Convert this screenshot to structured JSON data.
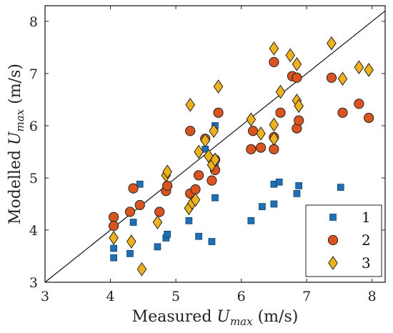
{
  "chart_data": {
    "type": "scatter",
    "xlabel": "Measured U_max (m/s)",
    "ylabel": "Modelled U_max (m/s)",
    "xlabel_parts": {
      "pre": "Measured ",
      "sym": "U",
      "sub": "max",
      "post": " (m/s)"
    },
    "ylabel_parts": {
      "pre": "Modelled ",
      "sym": "U",
      "sub": "max",
      "post": " (m/s)"
    },
    "xlim": [
      3,
      8.2
    ],
    "ylim": [
      3,
      8.3
    ],
    "xticks": [
      3,
      4,
      5,
      6,
      7,
      8
    ],
    "yticks": [
      3,
      4,
      5,
      6,
      7,
      8
    ],
    "reference_line": "y = x",
    "grid": false,
    "legend_position": "bottom-right",
    "series": [
      {
        "name": "1",
        "marker": "square",
        "color": "#1f6fb4",
        "points": [
          [
            4.05,
            3.65
          ],
          [
            4.05,
            3.47
          ],
          [
            4.3,
            3.55
          ],
          [
            4.35,
            4.15
          ],
          [
            4.45,
            4.88
          ],
          [
            4.72,
            3.68
          ],
          [
            4.85,
            3.85
          ],
          [
            4.87,
            3.92
          ],
          [
            5.2,
            4.18
          ],
          [
            5.35,
            3.88
          ],
          [
            5.45,
            5.55
          ],
          [
            5.55,
            3.78
          ],
          [
            5.6,
            4.62
          ],
          [
            5.6,
            6.0
          ],
          [
            5.6,
            5.25
          ],
          [
            6.15,
            4.18
          ],
          [
            6.32,
            4.45
          ],
          [
            6.5,
            4.5
          ],
          [
            6.5,
            4.88
          ],
          [
            6.58,
            4.92
          ],
          [
            6.85,
            4.7
          ],
          [
            6.88,
            4.85
          ],
          [
            7.52,
            4.82
          ]
        ]
      },
      {
        "name": "2",
        "marker": "circle",
        "color": "#d9541e",
        "points": [
          [
            4.05,
            4.25
          ],
          [
            4.05,
            4.08
          ],
          [
            4.35,
            4.8
          ],
          [
            4.3,
            4.35
          ],
          [
            4.45,
            4.48
          ],
          [
            4.75,
            4.35
          ],
          [
            4.85,
            4.75
          ],
          [
            4.87,
            4.85
          ],
          [
            5.22,
            4.7
          ],
          [
            5.22,
            5.9
          ],
          [
            5.3,
            4.78
          ],
          [
            5.35,
            5.05
          ],
          [
            5.45,
            5.75
          ],
          [
            5.55,
            4.95
          ],
          [
            5.6,
            5.15
          ],
          [
            5.6,
            5.35
          ],
          [
            5.65,
            6.25
          ],
          [
            6.15,
            5.55
          ],
          [
            6.18,
            5.9
          ],
          [
            6.3,
            5.58
          ],
          [
            6.5,
            5.55
          ],
          [
            6.5,
            5.78
          ],
          [
            6.5,
            7.22
          ],
          [
            6.6,
            6.25
          ],
          [
            6.78,
            6.95
          ],
          [
            6.85,
            5.95
          ],
          [
            6.85,
            6.92
          ],
          [
            6.88,
            6.1
          ],
          [
            7.38,
            6.92
          ],
          [
            7.55,
            6.25
          ],
          [
            7.8,
            6.42
          ],
          [
            7.95,
            6.15
          ]
        ]
      },
      {
        "name": "3",
        "marker": "diamond",
        "color": "#efb21f",
        "points": [
          [
            4.05,
            3.85
          ],
          [
            4.32,
            3.78
          ],
          [
            4.48,
            3.25
          ],
          [
            4.72,
            4.15
          ],
          [
            4.85,
            5.05
          ],
          [
            4.87,
            5.12
          ],
          [
            5.2,
            4.42
          ],
          [
            5.22,
            6.4
          ],
          [
            5.25,
            4.52
          ],
          [
            5.3,
            4.58
          ],
          [
            5.35,
            5.5
          ],
          [
            5.45,
            5.72
          ],
          [
            5.5,
            5.42
          ],
          [
            5.55,
            5.25
          ],
          [
            5.58,
            5.9
          ],
          [
            5.6,
            5.35
          ],
          [
            5.65,
            6.75
          ],
          [
            6.15,
            6.12
          ],
          [
            6.3,
            5.85
          ],
          [
            6.5,
            7.48
          ],
          [
            6.5,
            5.75
          ],
          [
            6.5,
            6.02
          ],
          [
            6.6,
            6.65
          ],
          [
            6.75,
            7.35
          ],
          [
            6.85,
            7.18
          ],
          [
            6.85,
            6.48
          ],
          [
            6.88,
            6.38
          ],
          [
            7.38,
            7.58
          ],
          [
            7.55,
            6.9
          ],
          [
            7.8,
            7.12
          ],
          [
            7.95,
            7.07
          ]
        ]
      }
    ]
  }
}
